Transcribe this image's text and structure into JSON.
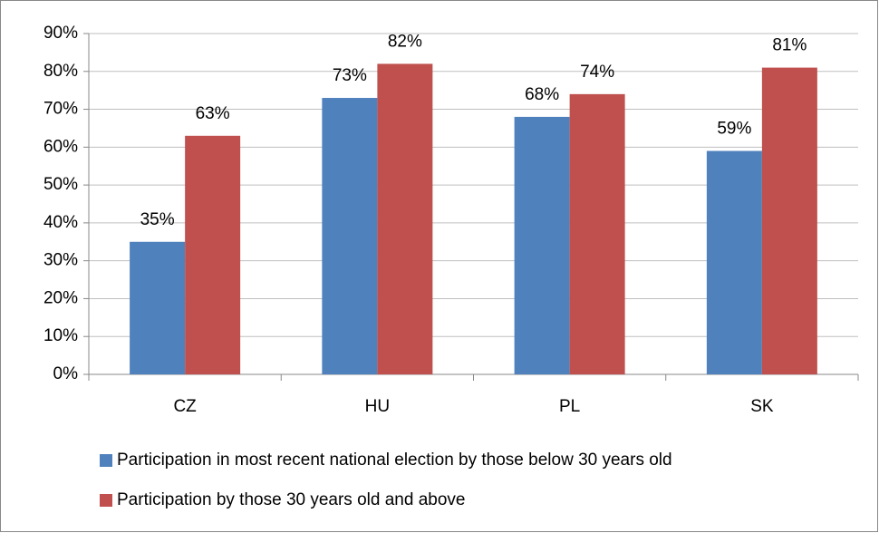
{
  "chart_data": {
    "type": "bar",
    "categories": [
      "CZ",
      "HU",
      "PL",
      "SK"
    ],
    "series": [
      {
        "name": "Participation in most recent national election by those below 30 years old",
        "color": "#4f81bd",
        "values": [
          35,
          73,
          68,
          59
        ],
        "value_labels": [
          "35%",
          "73%",
          "68%",
          "59%"
        ]
      },
      {
        "name": "Participation by those 30 years old and above",
        "color": "#c0504d",
        "values": [
          63,
          82,
          74,
          81
        ],
        "value_labels": [
          "63%",
          "82%",
          "74%",
          "81%"
        ]
      }
    ],
    "ylim": [
      0,
      90
    ],
    "yticks": [
      {
        "value": 0,
        "label": "0%"
      },
      {
        "value": 10,
        "label": "10%"
      },
      {
        "value": 20,
        "label": "20%"
      },
      {
        "value": 30,
        "label": "30%"
      },
      {
        "value": 40,
        "label": "40%"
      },
      {
        "value": 50,
        "label": "50%"
      },
      {
        "value": 60,
        "label": "60%"
      },
      {
        "value": 70,
        "label": "70%"
      },
      {
        "value": 80,
        "label": "80%"
      },
      {
        "value": 90,
        "label": "90%"
      }
    ],
    "grid": true,
    "legend": "bottom"
  }
}
